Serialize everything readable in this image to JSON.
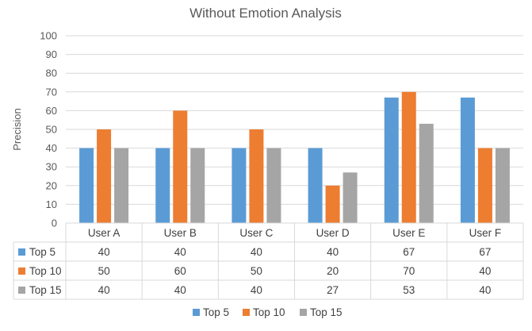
{
  "chart_data": {
    "type": "bar",
    "title": "Without Emotion Analysis",
    "xlabel": "",
    "ylabel": "Precision",
    "ylim": [
      0,
      100
    ],
    "yticks": [
      0,
      10,
      20,
      30,
      40,
      50,
      60,
      70,
      80,
      90,
      100
    ],
    "grid": true,
    "legend_position": "bottom",
    "data_table": true,
    "categories": [
      "User A",
      "User B",
      "User C",
      "User D",
      "User E",
      "User F"
    ],
    "series": [
      {
        "name": "Top 5",
        "color": "#5b9bd5",
        "values": [
          40,
          40,
          40,
          40,
          67,
          67
        ]
      },
      {
        "name": "Top 10",
        "color": "#ed7d31",
        "values": [
          50,
          60,
          50,
          20,
          70,
          40
        ]
      },
      {
        "name": "Top 15",
        "color": "#a5a5a5",
        "values": [
          40,
          40,
          40,
          27,
          53,
          40
        ]
      }
    ]
  }
}
